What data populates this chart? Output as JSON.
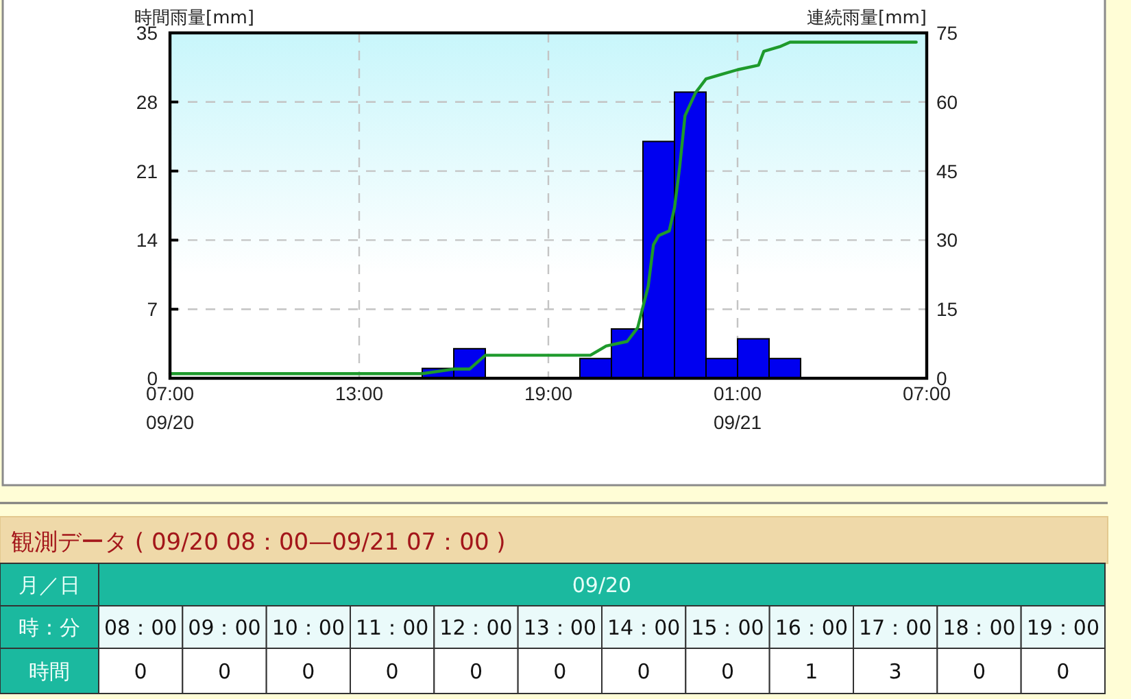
{
  "chart_data": [
    {
      "type": "bar",
      "ylabel": "時間雨量[mm]",
      "y2label": "連続雨量[mm]",
      "xlim": [
        "--09-20T07:00",
        "--09-21T07:00"
      ],
      "xticks": [
        {
          "value": "--09-20T07:00",
          "label": "07:00\n09/20"
        },
        {
          "value": "--09-20T13:00",
          "label": "13:00"
        },
        {
          "value": "--09-20T19:00",
          "label": "19:00"
        },
        {
          "value": "--09-21T01:00",
          "label": "01:00\n09/21"
        },
        {
          "value": "--09-21T07:00",
          "label": "07:00"
        }
      ],
      "ylim": [
        0,
        35
      ],
      "yticks": [
        0,
        7,
        14,
        21,
        28,
        35
      ],
      "y2lim": [
        0,
        75
      ],
      "y2ticks": [
        0,
        15,
        30,
        45,
        60,
        75
      ],
      "grid": true,
      "series": [
        {
          "type": "bar",
          "color": "#0000f0",
          "x": [
            "--09-20T07:30",
            "--09-20T08:30",
            "--09-20T09:30",
            "--09-20T10:30",
            "--09-20T11:30",
            "--09-20T12:30",
            "--09-20T13:30",
            "--09-20T14:30",
            "--09-20T15:30",
            "--09-20T16:30",
            "--09-20T17:30",
            "--09-20T18:30",
            "--09-20T19:30",
            "--09-20T20:30",
            "--09-20T21:30",
            "--09-20T22:30",
            "--09-20T23:30",
            "--09-21T00:30",
            "--09-21T01:30",
            "--09-21T02:30",
            "--09-21T03:30",
            "--09-21T04:30",
            "--09-21T05:30",
            "--09-21T06:30"
          ],
          "values": [
            0,
            0,
            0,
            0,
            0,
            0,
            0,
            0,
            1,
            3,
            0,
            0,
            0,
            2,
            5,
            24,
            29,
            2,
            4,
            2,
            0,
            0,
            0,
            0
          ]
        },
        {
          "type": "line",
          "axis": "y2",
          "color": "#1e9a2c",
          "x": [
            "--09-20T07:00",
            "--09-20T15:00",
            "--09-20T16:00",
            "--09-20T16:30",
            "--09-20T17:00",
            "--09-20T20:20",
            "--09-20T20:50",
            "--09-20T21:30",
            "--09-20T21:50",
            "--09-20T22:10",
            "--09-20T22:20",
            "--09-20T22:30",
            "--09-20T22:50",
            "--09-20T23:00",
            "--09-20T23:10",
            "--09-20T23:20",
            "--09-20T23:40",
            "--09-21T00:00",
            "--09-21T00:30",
            "--09-21T01:00",
            "--09-21T01:40",
            "--09-21T01:50",
            "--09-21T02:20",
            "--09-21T02:40",
            "--09-21T06:40"
          ],
          "values": [
            1,
            1,
            2,
            2,
            5,
            5,
            7,
            8,
            11,
            20,
            29,
            31,
            32,
            37,
            46,
            57,
            62,
            65,
            66,
            67,
            68,
            71,
            72,
            73,
            73
          ]
        }
      ]
    },
    {
      "type": "other",
      "title": "観測データ ( 09/20 08：00—09/21 07：00 )",
      "annotations": [
        "月／日",
        "09/20"
      ],
      "xlabel": "時：分",
      "ylabel": "時間",
      "data_labels": true,
      "categories": [
        "08：00",
        "09：00",
        "10：00",
        "11：00",
        "12：00",
        "13：00",
        "14：00",
        "15：00",
        "16：00",
        "17：00",
        "18：00",
        "19：00"
      ],
      "values": [
        0,
        0,
        0,
        0,
        0,
        0,
        0,
        0,
        1,
        3,
        0,
        0
      ]
    }
  ]
}
